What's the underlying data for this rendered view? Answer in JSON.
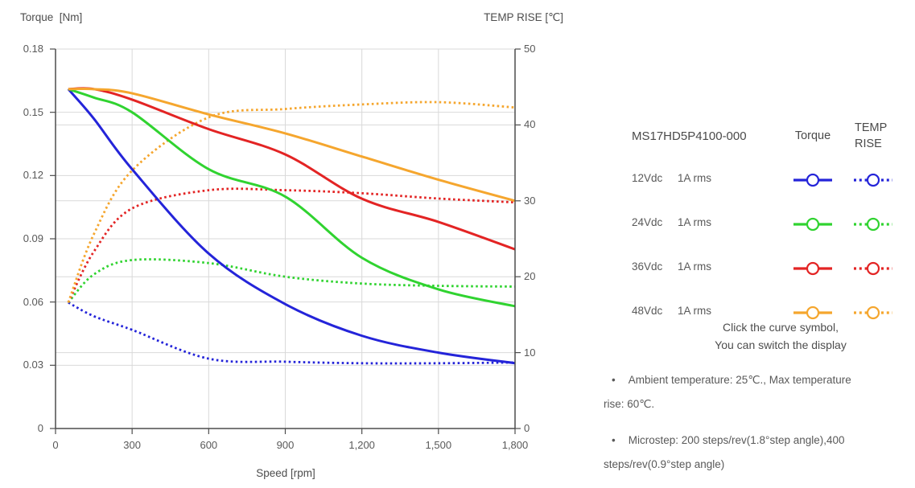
{
  "chart": {
    "y_left": {
      "title": "Torque  [Nm]",
      "ticks": [
        "0",
        "0.03",
        "0.06",
        "0.09",
        "0.12",
        "0.15",
        "0.18"
      ]
    },
    "y_right": {
      "title": "TEMP RISE [℃]",
      "ticks": [
        "0",
        "10",
        "20",
        "30",
        "40",
        "50"
      ]
    },
    "x": {
      "title": "Speed [rpm]",
      "ticks": [
        "0",
        "300",
        "600",
        "900",
        "1,200",
        "1,500",
        "1,800"
      ]
    }
  },
  "chart_data": {
    "type": "line",
    "title": "",
    "xlabel": "Speed [rpm]",
    "ylabel_left": "Torque [Nm]",
    "ylabel_right": "TEMP RISE [℃]",
    "xlim": [
      0,
      1800
    ],
    "ylim_left": [
      0,
      0.18
    ],
    "ylim_right": [
      0,
      50
    ],
    "grid": true,
    "legend_position": "right",
    "x": [
      50,
      150,
      300,
      600,
      900,
      1200,
      1500,
      1800
    ],
    "series": [
      {
        "id": "torque-12vdc",
        "name": "12Vdc 1A rms Torque",
        "axis": "left",
        "line": "solid",
        "color": "#2424d9",
        "values": [
          0.161,
          0.147,
          0.123,
          0.083,
          0.059,
          0.044,
          0.036,
          0.031
        ]
      },
      {
        "id": "torque-24vdc",
        "name": "24Vdc 1A rms Torque",
        "axis": "left",
        "line": "solid",
        "color": "#30d330",
        "values": [
          0.161,
          0.157,
          0.15,
          0.123,
          0.11,
          0.081,
          0.066,
          0.058
        ]
      },
      {
        "id": "torque-36vdc",
        "name": "36Vdc 1A rms Torque",
        "axis": "left",
        "line": "solid",
        "color": "#e32424",
        "values": [
          0.161,
          0.161,
          0.156,
          0.142,
          0.13,
          0.109,
          0.098,
          0.085
        ]
      },
      {
        "id": "torque-48vdc",
        "name": "48Vdc 1A rms Torque",
        "axis": "left",
        "line": "solid",
        "color": "#f5a62e",
        "values": [
          0.161,
          0.161,
          0.159,
          0.149,
          0.14,
          0.129,
          0.118,
          0.108
        ]
      },
      {
        "id": "temp-12vdc",
        "name": "12Vdc 1A rms TEMP RISE",
        "axis": "right",
        "line": "dotted",
        "color": "#2424d9",
        "values": [
          16.6,
          14.8,
          13.0,
          9.2,
          8.8,
          8.6,
          8.6,
          8.7
        ]
      },
      {
        "id": "temp-24vdc",
        "name": "24Vdc 1A rms TEMP RISE",
        "axis": "right",
        "line": "dotted",
        "color": "#30d330",
        "values": [
          16.6,
          20.3,
          22.2,
          21.8,
          20.0,
          19.1,
          18.8,
          18.7
        ]
      },
      {
        "id": "temp-36vdc",
        "name": "36Vdc 1A rms TEMP RISE",
        "axis": "right",
        "line": "dotted",
        "color": "#e32424",
        "values": [
          16.6,
          23.3,
          29.0,
          31.4,
          31.4,
          31.0,
          30.3,
          29.8
        ]
      },
      {
        "id": "temp-48vdc",
        "name": "48Vdc 1A rms TEMP RISE",
        "axis": "right",
        "line": "dotted",
        "color": "#f5a62e",
        "values": [
          16.6,
          25.6,
          34.0,
          41.0,
          42.1,
          42.7,
          43.0,
          42.3
        ]
      }
    ]
  },
  "legend": {
    "header": {
      "model": "MS17HD5P4100-000",
      "torque": "Torque",
      "temp": "TEMP RISE"
    },
    "rows": [
      {
        "label": "12Vdc",
        "sub": "1A rms",
        "color": "#2424d9"
      },
      {
        "label": "24Vdc",
        "sub": "1A rms",
        "color": "#30d330"
      },
      {
        "label": "36Vdc",
        "sub": "1A rms",
        "color": "#e32424"
      },
      {
        "label": "48Vdc",
        "sub": "1A rms",
        "color": "#f5a62e"
      }
    ],
    "hint_line1": "Click the curve symbol,",
    "hint_line2": "You can switch the display"
  },
  "notes": [
    "Ambient temperature: 25℃.,  Max temperature rise: 60℃.",
    "Microstep: 200 steps/rev(1.8°step angle),400 steps/rev(0.9°step angle)"
  ],
  "colors": {
    "grid": "#d9d9d9",
    "axis": "#4d4d4d",
    "tick_text": "#595959"
  }
}
